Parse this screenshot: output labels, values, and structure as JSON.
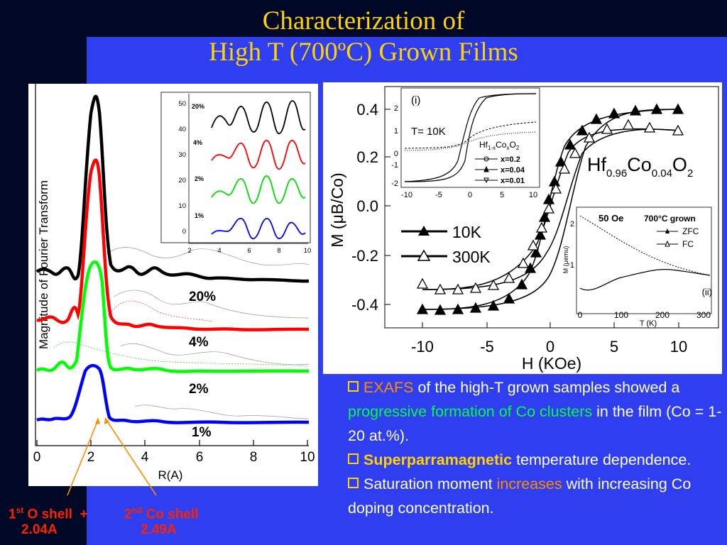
{
  "title": {
    "line1": "Characterization of",
    "line2": "High T (700ºC) Grown Films"
  },
  "left_figure": {
    "ylabel": "Magnitude of Fourier Transform",
    "xlabel": "R(A)",
    "xticks": [
      "0",
      "2",
      "4",
      "6",
      "8",
      "10"
    ],
    "curve_labels": [
      "20%",
      "4%",
      "2%",
      "1%"
    ],
    "inset_ticks_y": [
      "50",
      "40",
      "30",
      "20",
      "10",
      "0"
    ],
    "inset_ticks_x": [
      "2",
      "4",
      "6",
      "8",
      "10"
    ],
    "inset_labels": [
      "20%",
      "4%",
      "2%",
      "1%"
    ]
  },
  "right_figure": {
    "xlabel": "H (KOe)",
    "ylabel": "M (μB/Co)",
    "xticks": [
      "-10",
      "-5",
      "0",
      "5",
      "10"
    ],
    "yticks": [
      "0.4",
      "0.2",
      "0.0",
      "-0.2",
      "-0.4"
    ],
    "formula": "Hf0.96Co0.04O2",
    "legend": [
      "10K",
      "300K"
    ],
    "inset1": {
      "tag": "(i)",
      "temp": "T= 10K",
      "formula": "Hf1-xCoxO2",
      "legend": [
        "x=0.2",
        "x=0.04",
        "x=0.01"
      ],
      "xticks": [
        "-10",
        "-5",
        "0",
        "5",
        "10"
      ],
      "yticks": [
        "2",
        "1",
        "0",
        "-1",
        "-2"
      ]
    },
    "inset2": {
      "tag": "(ii)",
      "field": "50 Oe",
      "grown": "700°C grown",
      "legend": [
        "ZFC",
        "FC"
      ],
      "xlabel": "T (K)",
      "ylabel": "M (μemu)",
      "xticks": [
        "0",
        "100",
        "200",
        "300"
      ],
      "yticks": [
        "2",
        "1"
      ]
    }
  },
  "shells": {
    "first_label": "O shell",
    "first_value": "2.04A",
    "second_label": "Co shell",
    "second_value": "2.49A",
    "plus": "+"
  },
  "bullets": {
    "b1_a": "EXAFS",
    "b1_b": " of the high-T grown samples showed a ",
    "b1_c": "progressive formation of Co clusters",
    "b1_d": " in the film (Co = 1-20 at.%).",
    "b2_a": "Superparramagnetic",
    "b2_b": " temperature dependence.",
    "b3_a": "Saturation moment ",
    "b3_b": "increases",
    "b3_c": " with increasing Co doping concentration."
  },
  "colors": {
    "background": "#2f3ff0",
    "title": "#ffd200",
    "accent_orange": "#ff8c00",
    "accent_green": "#00ff40",
    "shell_red": "#ff2200"
  }
}
